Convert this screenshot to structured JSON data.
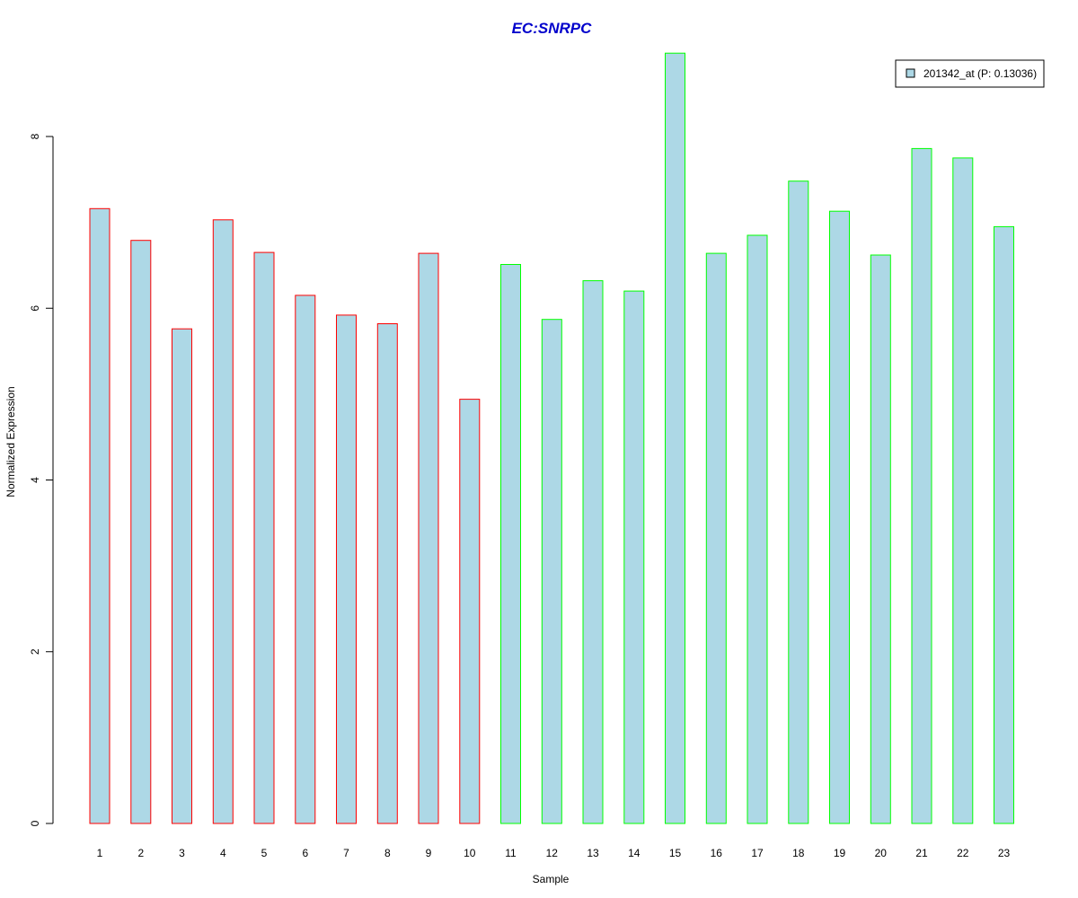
{
  "chart_data": {
    "type": "bar",
    "title": "EC:SNRPC",
    "xlabel": "Sample",
    "ylabel": "Normalized Expression",
    "categories": [
      "1",
      "2",
      "3",
      "4",
      "5",
      "6",
      "7",
      "8",
      "9",
      "10",
      "11",
      "12",
      "13",
      "14",
      "15",
      "16",
      "17",
      "18",
      "19",
      "20",
      "21",
      "22",
      "23"
    ],
    "values": [
      7.16,
      6.79,
      5.76,
      7.03,
      6.65,
      6.15,
      5.92,
      5.82,
      6.64,
      4.94,
      6.51,
      5.87,
      6.32,
      6.2,
      8.97,
      6.64,
      6.85,
      7.48,
      7.13,
      6.62,
      7.86,
      7.75,
      6.95
    ],
    "groups": [
      "red",
      "red",
      "red",
      "red",
      "red",
      "red",
      "red",
      "red",
      "red",
      "red",
      "green",
      "green",
      "green",
      "green",
      "green",
      "green",
      "green",
      "green",
      "green",
      "green",
      "green",
      "green",
      "green"
    ],
    "ylim": [
      0,
      8
    ],
    "yticks": [
      "0",
      "2",
      "4",
      "6",
      "8"
    ],
    "grid": false,
    "legend": {
      "placement": "top-right",
      "entries": [
        {
          "label": "201342_at (P: 0.13036)"
        }
      ]
    },
    "colors": {
      "title": "#0000cc",
      "bar_fill": "#add8e6",
      "red": "#ff0000",
      "green": "#00ff00",
      "axis": "#000000"
    }
  }
}
